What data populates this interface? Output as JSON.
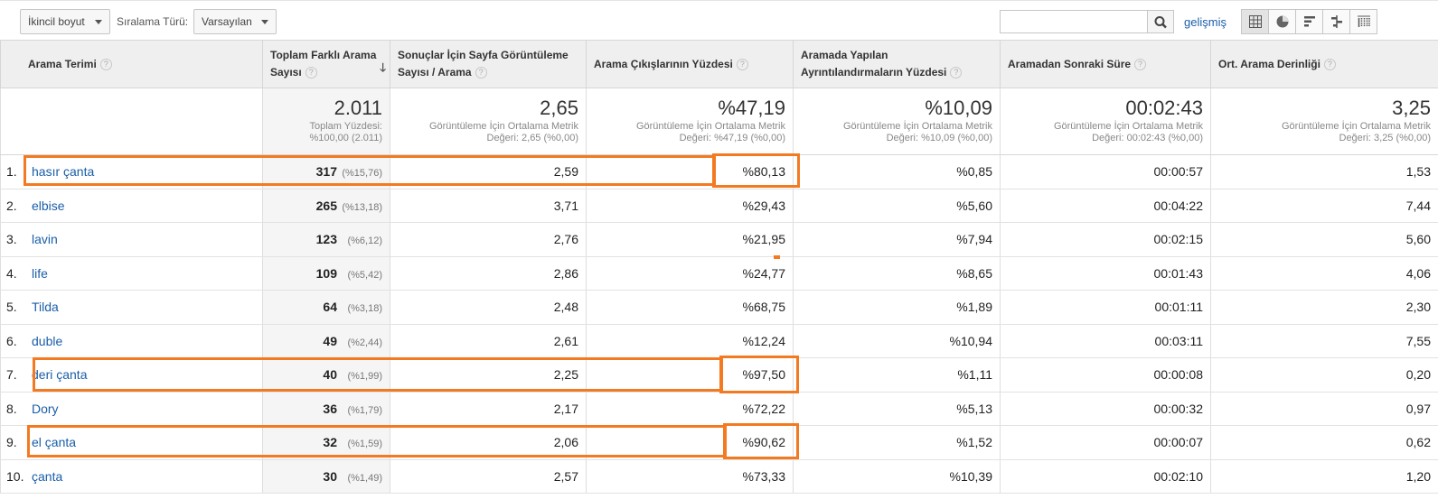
{
  "toolbar": {
    "secondary_dimension": "İkincil boyut",
    "sort_type_label": "Sıralama Türü:",
    "sort_type_value": "Varsayılan",
    "search_value": "",
    "advanced_link": "gelişmiş",
    "view_icons": [
      "table-view-icon",
      "pie-view-icon",
      "performance-view-icon",
      "comparison-view-icon",
      "pivot-view-icon"
    ]
  },
  "columns": {
    "term": "Arama Terimi",
    "unique": "Toplam Farklı Arama Sayısı",
    "views": "Sonuçlar İçin Sayfa Görüntüleme Sayısı / Arama",
    "exits": "Arama Çıkışlarının Yüzdesi",
    "refinements": "Aramada Yapılan Ayrıntılandırmaların Yüzdesi",
    "time": "Aramadan Sonraki Süre",
    "depth": "Ort. Arama Derinliği"
  },
  "summary": {
    "unique": {
      "value": "2.011",
      "line1": "Toplam Yüzdesi:",
      "line2": "%100,00 (2.011)"
    },
    "views": {
      "value": "2,65",
      "line1": "Görüntüleme İçin Ortalama Metrik",
      "line2": "Değeri: 2,65 (%0,00)"
    },
    "exits": {
      "value": "%47,19",
      "line1": "Görüntüleme İçin Ortalama Metrik",
      "line2": "Değeri: %47,19 (%0,00)"
    },
    "refinements": {
      "value": "%10,09",
      "line1": "Görüntüleme İçin Ortalama Metrik",
      "line2": "Değeri: %10,09 (%0,00)"
    },
    "time": {
      "value": "00:02:43",
      "line1": "Görüntüleme İçin Ortalama Metrik",
      "line2": "Değeri: 00:02:43 (%0,00)"
    },
    "depth": {
      "value": "3,25",
      "line1": "Görüntüleme İçin Ortalama Metrik",
      "line2": "Değeri: 3,25 (%0,00)"
    }
  },
  "rows": [
    {
      "idx": "1.",
      "term": "hasır çanta",
      "unique": "317",
      "pct": "(%15,76)",
      "views": "2,59",
      "exits": "%80,13",
      "refinements": "%0,85",
      "time": "00:00:57",
      "depth": "1,53"
    },
    {
      "idx": "2.",
      "term": "elbise",
      "unique": "265",
      "pct": "(%13,18)",
      "views": "3,71",
      "exits": "%29,43",
      "refinements": "%5,60",
      "time": "00:04:22",
      "depth": "7,44"
    },
    {
      "idx": "3.",
      "term": "lavin",
      "unique": "123",
      "pct": "(%6,12)",
      "views": "2,76",
      "exits": "%21,95",
      "refinements": "%7,94",
      "time": "00:02:15",
      "depth": "5,60"
    },
    {
      "idx": "4.",
      "term": "life",
      "unique": "109",
      "pct": "(%5,42)",
      "views": "2,86",
      "exits": "%24,77",
      "refinements": "%8,65",
      "time": "00:01:43",
      "depth": "4,06"
    },
    {
      "idx": "5.",
      "term": "Tilda",
      "unique": "64",
      "pct": "(%3,18)",
      "views": "2,48",
      "exits": "%68,75",
      "refinements": "%1,89",
      "time": "00:01:11",
      "depth": "2,30"
    },
    {
      "idx": "6.",
      "term": "duble",
      "unique": "49",
      "pct": "(%2,44)",
      "views": "2,61",
      "exits": "%12,24",
      "refinements": "%10,94",
      "time": "00:03:11",
      "depth": "7,55"
    },
    {
      "idx": "7.",
      "term": "deri çanta",
      "unique": "40",
      "pct": "(%1,99)",
      "views": "2,25",
      "exits": "%97,50",
      "refinements": "%1,11",
      "time": "00:00:08",
      "depth": "0,20"
    },
    {
      "idx": "8.",
      "term": "Dory",
      "unique": "36",
      "pct": "(%1,79)",
      "views": "2,17",
      "exits": "%72,22",
      "refinements": "%5,13",
      "time": "00:00:32",
      "depth": "0,97"
    },
    {
      "idx": "9.",
      "term": "el çanta",
      "unique": "32",
      "pct": "(%1,59)",
      "views": "2,06",
      "exits": "%90,62",
      "refinements": "%1,52",
      "time": "00:00:07",
      "depth": "0,62"
    },
    {
      "idx": "10.",
      "term": "çanta",
      "unique": "30",
      "pct": "(%1,49)",
      "views": "2,57",
      "exits": "%73,33",
      "refinements": "%10,39",
      "time": "00:02:10",
      "depth": "1,20"
    }
  ],
  "colors": {
    "highlight": "#f37a20",
    "link": "#1a5ea8",
    "header_bg": "#efefef"
  }
}
